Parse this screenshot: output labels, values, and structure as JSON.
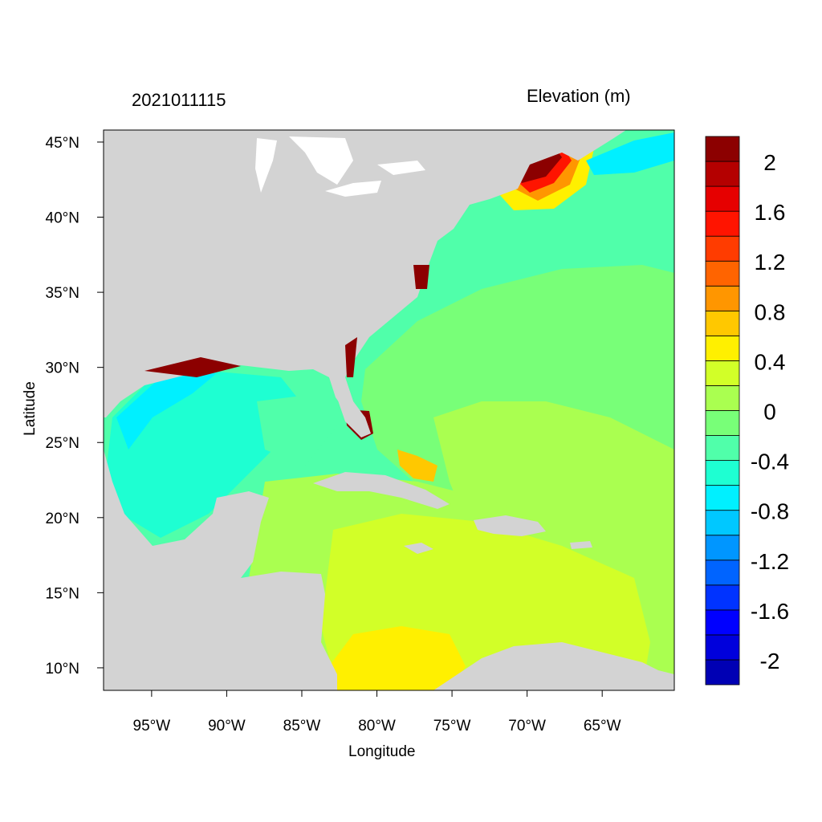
{
  "map": {
    "title": "2021011115",
    "units_label": "Elevation (m)",
    "x_axis_label": "Longitude",
    "y_axis_label": "Latitude",
    "lon_range": [
      -98.2,
      -60.2
    ],
    "lat_range": [
      8.5,
      45.8
    ],
    "x_ticks": [
      {
        "lon": -95,
        "label": "95°W"
      },
      {
        "lon": -90,
        "label": "90°W"
      },
      {
        "lon": -85,
        "label": "85°W"
      },
      {
        "lon": -80,
        "label": "80°W"
      },
      {
        "lon": -75,
        "label": "75°W"
      },
      {
        "lon": -70,
        "label": "70°W"
      },
      {
        "lon": -65,
        "label": "65°W"
      }
    ],
    "y_ticks": [
      {
        "lat": 45,
        "label": "45°N"
      },
      {
        "lat": 40,
        "label": "40°N"
      },
      {
        "lat": 35,
        "label": "35°N"
      },
      {
        "lat": 30,
        "label": "30°N"
      },
      {
        "lat": 25,
        "label": "25°N"
      },
      {
        "lat": 20,
        "label": "20°N"
      },
      {
        "lat": 15,
        "label": "15°N"
      },
      {
        "lat": 10,
        "label": "10°N"
      }
    ],
    "land_color": "#d3d3d3",
    "lake_color": "#ffffff"
  },
  "colorbar": {
    "colors_bottom_to_top": [
      "#0000b4",
      "#0000dc",
      "#0000ff",
      "#0033ff",
      "#0064ff",
      "#0096ff",
      "#00c8ff",
      "#00f0ff",
      "#1effd2",
      "#50ffaa",
      "#78ff78",
      "#aaff50",
      "#d2ff28",
      "#fff000",
      "#ffc800",
      "#ff9600",
      "#ff6400",
      "#ff3c00",
      "#ff1400",
      "#e60000",
      "#b40000",
      "#8c0000"
    ],
    "labels": [
      "2",
      "1.6",
      "1.2",
      "0.8",
      "0.4",
      "0",
      "-0.4",
      "-0.8",
      "-1.2",
      "-1.6",
      "-2"
    ]
  }
}
